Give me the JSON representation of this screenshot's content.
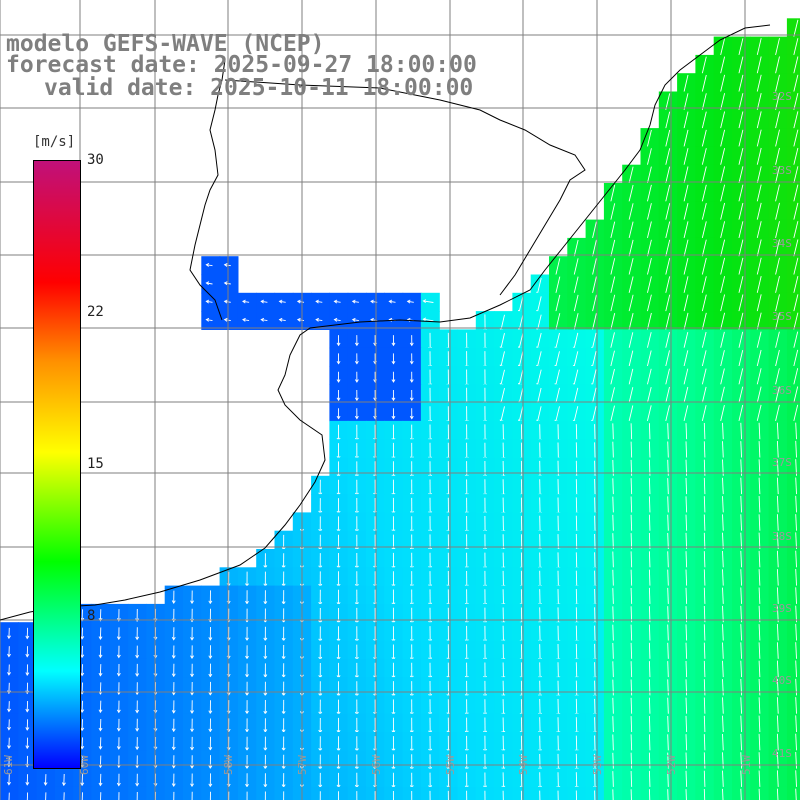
{
  "title": {
    "model": "modelo GEFS-WAVE (NCEP)",
    "forecast": "forecast date: 2025-09-27 18:00:00",
    "valid": "valid date: 2025-10-11 18:00:00"
  },
  "colorbar": {
    "unit": "[m/s]",
    "labels": [
      "30",
      "22",
      "15",
      "8"
    ],
    "colors": [
      "#c0107a",
      "#ff0000",
      "#ff9000",
      "#ffff00",
      "#00ff00",
      "#00ffff",
      "#0060ff",
      "#0000ff"
    ]
  },
  "map": {
    "lat_labels": [
      "32S",
      "33S",
      "34S",
      "35S",
      "36S",
      "37S",
      "38S",
      "39S",
      "40S",
      "41S"
    ],
    "lon_labels": [
      "61W",
      "60W",
      "58W",
      "57W",
      "56W",
      "55W",
      "54W",
      "53W",
      "52W",
      "51W"
    ],
    "colors": {
      "coast": "#000000",
      "grid": "#7f7f7f",
      "land": "#ffffff",
      "arrows": "#ffffff"
    }
  }
}
